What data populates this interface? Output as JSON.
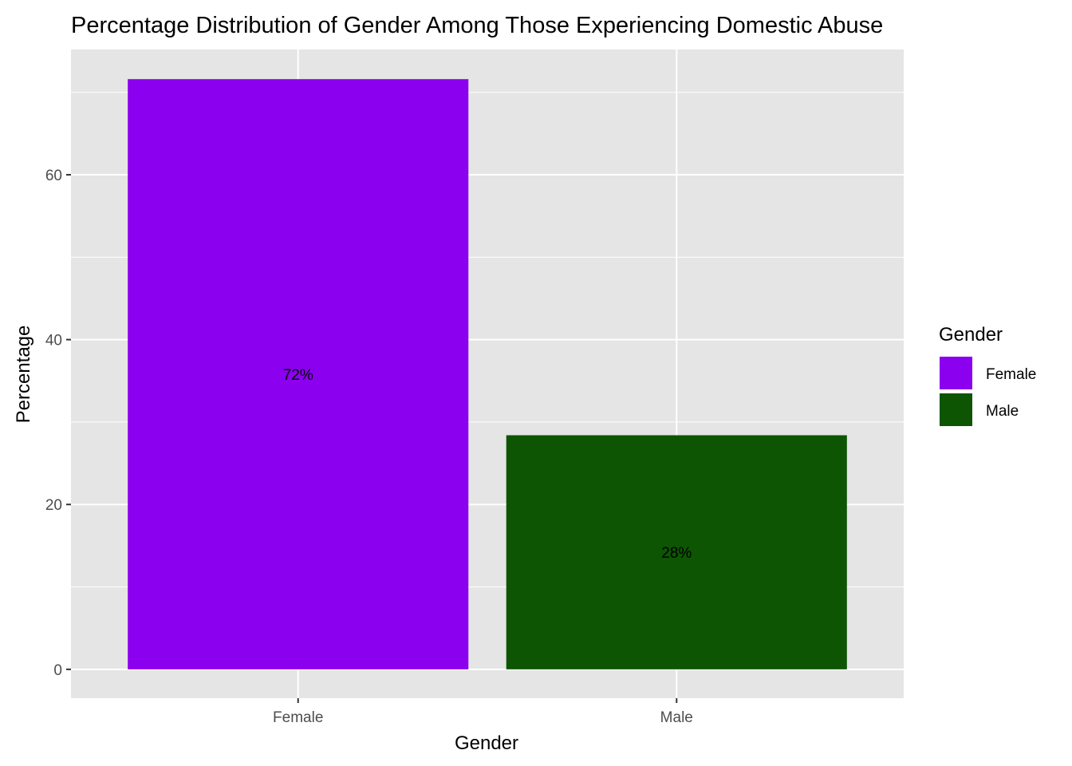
{
  "chart_data": {
    "type": "bar",
    "title": "Percentage Distribution of Gender Among Those Experiencing Domestic Abuse",
    "xlabel": "Gender",
    "ylabel": "Percentage",
    "categories": [
      "Female",
      "Male"
    ],
    "values": [
      71.6,
      28.4
    ],
    "data_labels": [
      "72%",
      "28%"
    ],
    "colors": [
      "#8b00ee",
      "#0d5503"
    ],
    "ylim": [
      -3.5,
      75.2
    ],
    "yticks": [
      0,
      20,
      40,
      60
    ],
    "grid": true,
    "panel_background": "#e5e5e5",
    "legend": {
      "title": "Gender",
      "position": "right",
      "entries": [
        "Female",
        "Male"
      ]
    }
  }
}
